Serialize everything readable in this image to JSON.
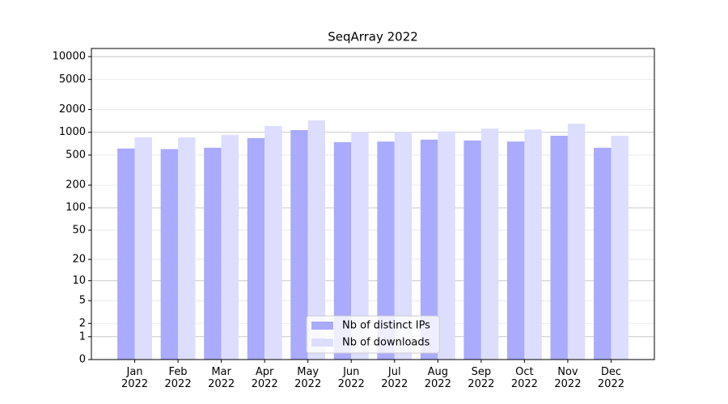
{
  "chart_data": {
    "type": "bar",
    "title": "SeqArray 2022",
    "scale": "log1p",
    "categories": [
      "Jan\n2022",
      "Feb\n2022",
      "Mar\n2022",
      "Apr\n2022",
      "May\n2022",
      "Jun\n2022",
      "Jul\n2022",
      "Aug\n2022",
      "Sep\n2022",
      "Oct\n2022",
      "Nov\n2022",
      "Dec\n2022"
    ],
    "series": [
      {
        "name": "Nb of distinct IPs",
        "color": "#aaaaff",
        "values": [
          610,
          600,
          625,
          840,
          1070,
          740,
          755,
          800,
          780,
          755,
          900,
          625
        ]
      },
      {
        "name": "Nb of downloads",
        "color": "#ddddff",
        "values": [
          860,
          860,
          920,
          1210,
          1440,
          1000,
          1000,
          1030,
          1120,
          1090,
          1300,
          900
        ]
      }
    ],
    "ylim": [
      0,
      12800
    ],
    "yticks": [
      0,
      1,
      2,
      5,
      10,
      20,
      50,
      100,
      200,
      500,
      1000,
      2000,
      5000,
      10000
    ],
    "grid": true,
    "legend": "lower center"
  }
}
